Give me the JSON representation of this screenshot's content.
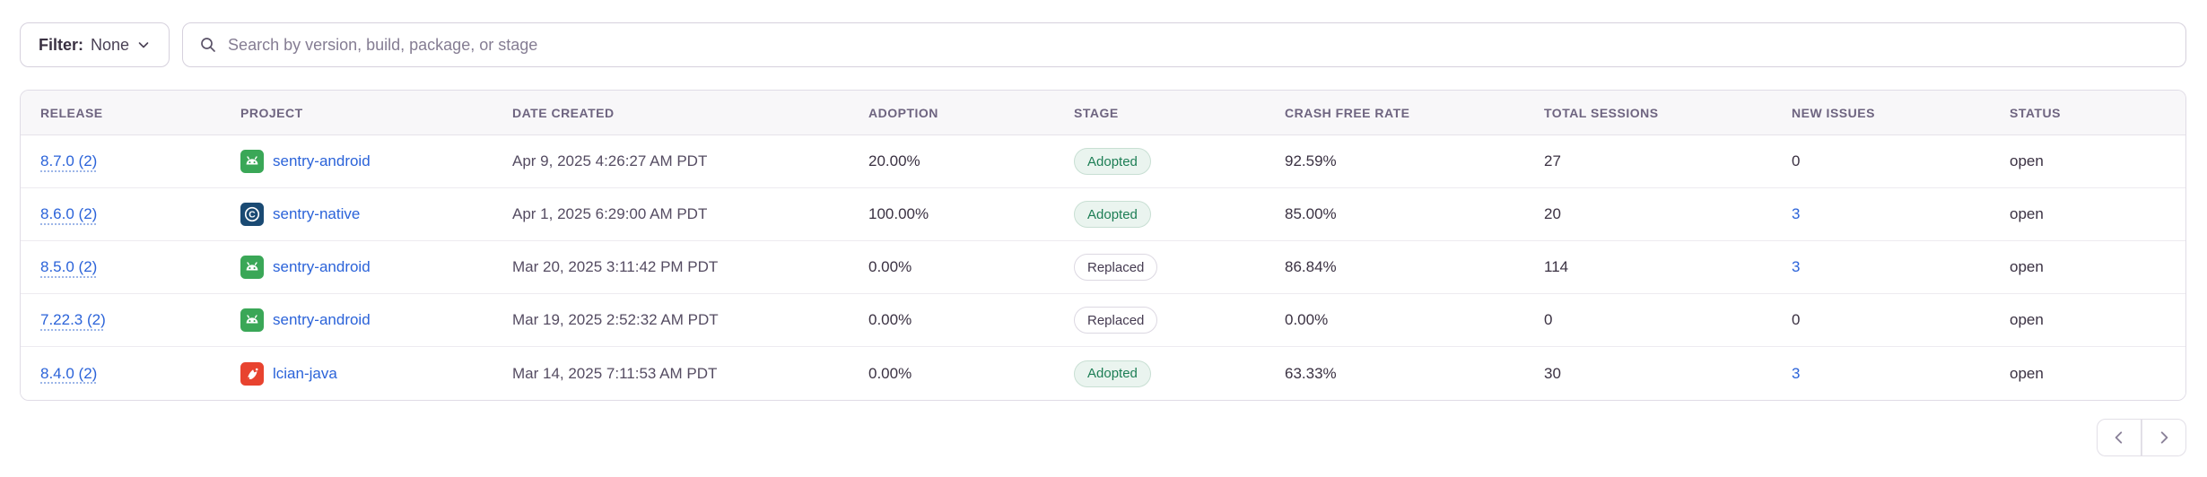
{
  "toolbar": {
    "filter_label": "Filter:",
    "filter_value": "None",
    "search_placeholder": "Search by version, build, package, or stage"
  },
  "table": {
    "columns": [
      "Release",
      "Project",
      "Date Created",
      "Adoption",
      "Stage",
      "Crash Free Rate",
      "Total Sessions",
      "New Issues",
      "Status"
    ],
    "rows": [
      {
        "release": "8.7.0 (2)",
        "project": "sentry-android",
        "platform": "android",
        "date_created": "Apr 9, 2025 4:26:27 AM PDT",
        "adoption": "20.00%",
        "stage": "Adopted",
        "crash_free_rate": "92.59%",
        "total_sessions": "27",
        "new_issues": "0",
        "status": "open"
      },
      {
        "release": "8.6.0 (2)",
        "project": "sentry-native",
        "platform": "c",
        "date_created": "Apr 1, 2025 6:29:00 AM PDT",
        "adoption": "100.00%",
        "stage": "Adopted",
        "crash_free_rate": "85.00%",
        "total_sessions": "20",
        "new_issues": "3",
        "status": "open"
      },
      {
        "release": "8.5.0 (2)",
        "project": "sentry-android",
        "platform": "android",
        "date_created": "Mar 20, 2025 3:11:42 PM PDT",
        "adoption": "0.00%",
        "stage": "Replaced",
        "crash_free_rate": "86.84%",
        "total_sessions": "114",
        "new_issues": "3",
        "status": "open"
      },
      {
        "release": "7.22.3 (2)",
        "project": "sentry-android",
        "platform": "android",
        "date_created": "Mar 19, 2025 2:52:32 AM PDT",
        "adoption": "0.00%",
        "stage": "Replaced",
        "crash_free_rate": "0.00%",
        "total_sessions": "0",
        "new_issues": "0",
        "status": "open"
      },
      {
        "release": "8.4.0 (2)",
        "project": "lcian-java",
        "platform": "java",
        "date_created": "Mar 14, 2025 7:11:53 AM PDT",
        "adoption": "0.00%",
        "stage": "Adopted",
        "crash_free_rate": "63.33%",
        "total_sessions": "30",
        "new_issues": "3",
        "status": "open"
      }
    ]
  },
  "colors": {
    "link_blue": "#2b63d9",
    "adopted_green": "#1d7e55",
    "adopted_bg": "#eaf4ef",
    "header_bg": "#f8f7f9",
    "border": "#e0dce6",
    "android_icon": "#3aa757",
    "c_icon": "#1a4a73",
    "java_icon": "#e8432f"
  }
}
